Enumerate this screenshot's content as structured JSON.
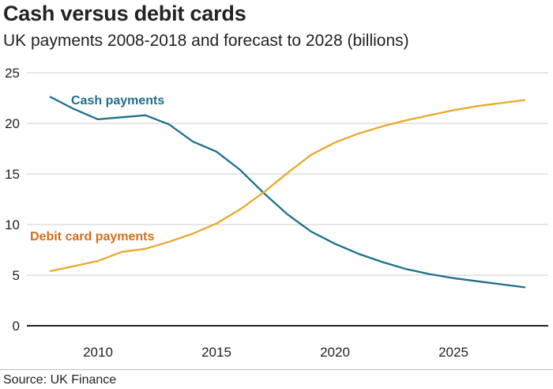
{
  "chart_data": {
    "type": "line",
    "title": "Cash versus debit cards",
    "subtitle": "UK payments 2008-2018 and forecast to 2028 (billions)",
    "xlabel": "",
    "ylabel": "",
    "xlim": [
      2008,
      2028
    ],
    "ylim": [
      0,
      25
    ],
    "x_ticks": [
      2010,
      2015,
      2020,
      2025
    ],
    "y_ticks": [
      0,
      5,
      10,
      15,
      20,
      25
    ],
    "grid": "horizontal",
    "legend": "inline labels",
    "x": [
      2008,
      2009,
      2010,
      2011,
      2012,
      2013,
      2014,
      2015,
      2016,
      2017,
      2018,
      2019,
      2020,
      2021,
      2022,
      2023,
      2024,
      2025,
      2026,
      2027,
      2028
    ],
    "series": [
      {
        "name": "Cash payments",
        "color": "#1d6f8c",
        "label_color": "#1d6f8c",
        "values": [
          22.6,
          21.4,
          20.4,
          20.6,
          20.8,
          19.9,
          18.2,
          17.2,
          15.4,
          13.1,
          11.0,
          9.3,
          8.1,
          7.1,
          6.3,
          5.6,
          5.1,
          4.7,
          4.4,
          4.1,
          3.8
        ]
      },
      {
        "name": "Debit card payments",
        "color": "#e9a82b",
        "label_color": "#d46f1a",
        "values": [
          5.4,
          5.9,
          6.4,
          7.3,
          7.6,
          8.3,
          9.1,
          10.1,
          11.5,
          13.2,
          15.1,
          16.9,
          18.1,
          19.0,
          19.7,
          20.3,
          20.8,
          21.3,
          21.7,
          22.0,
          22.3
        ]
      }
    ],
    "source": "Source: UK Finance"
  }
}
